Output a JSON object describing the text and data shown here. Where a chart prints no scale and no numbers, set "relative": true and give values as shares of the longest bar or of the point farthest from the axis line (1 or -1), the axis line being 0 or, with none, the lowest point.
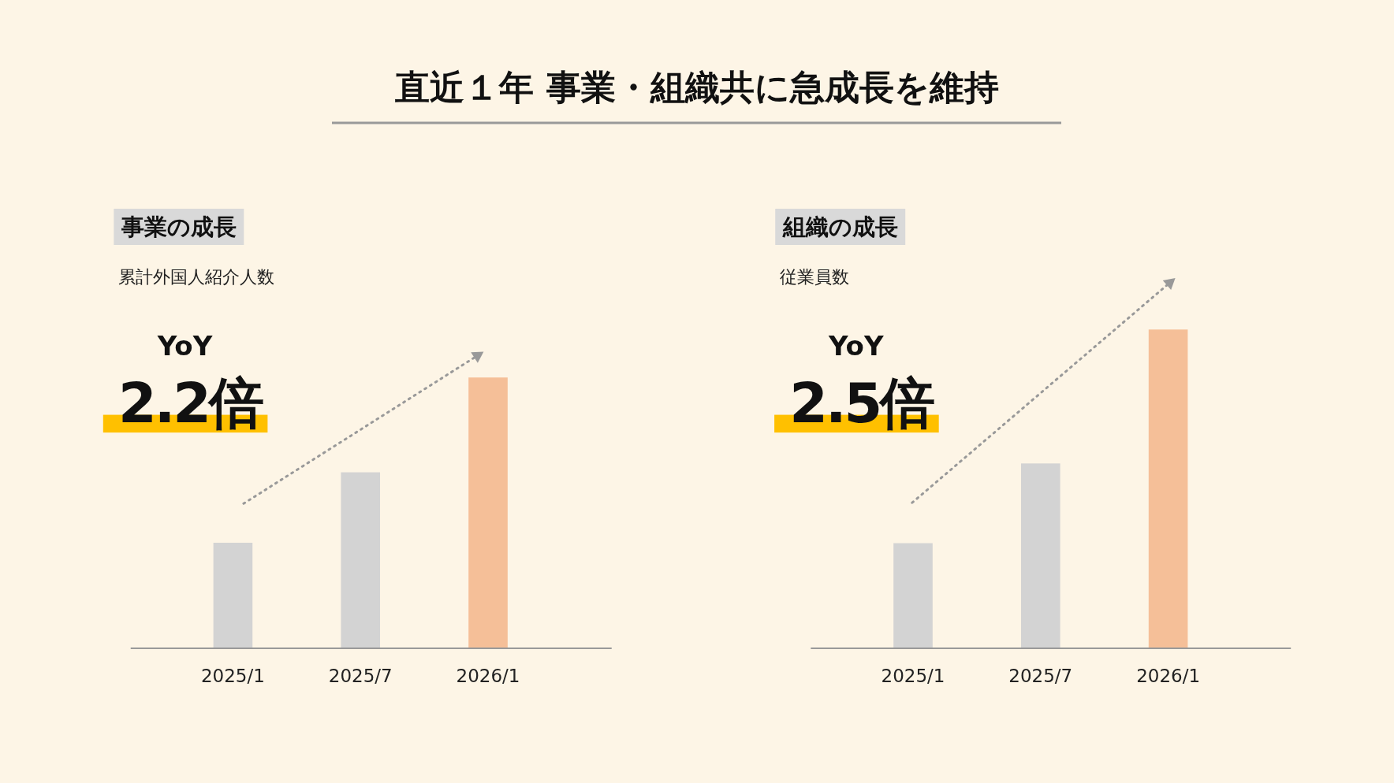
{
  "chart_data": [
    {
      "type": "bar",
      "relative": true,
      "title": "事業の成長",
      "subtitle": "累計外国人紹介人数",
      "categories": [
        "2025/1",
        "2025/7",
        "2026/1"
      ],
      "values": [
        0.39,
        0.65,
        1
      ],
      "colors": [
        "#d3d3d3",
        "#d3d3d3",
        "#f5bf98"
      ],
      "annotations": [
        "直近１年 事業・組織共に急成長を維持",
        "YoY",
        "2.2倍"
      ]
    },
    {
      "type": "bar",
      "relative": true,
      "title": "組織の成長",
      "subtitle": "従業員数",
      "categories": [
        "2025/1",
        "2025/7",
        "2026/1"
      ],
      "values": [
        0.33,
        0.58,
        1
      ],
      "colors": [
        "#d3d3d3",
        "#d3d3d3",
        "#f5bf98"
      ],
      "annotations": [
        "YoY",
        "2.5倍"
      ]
    }
  ]
}
